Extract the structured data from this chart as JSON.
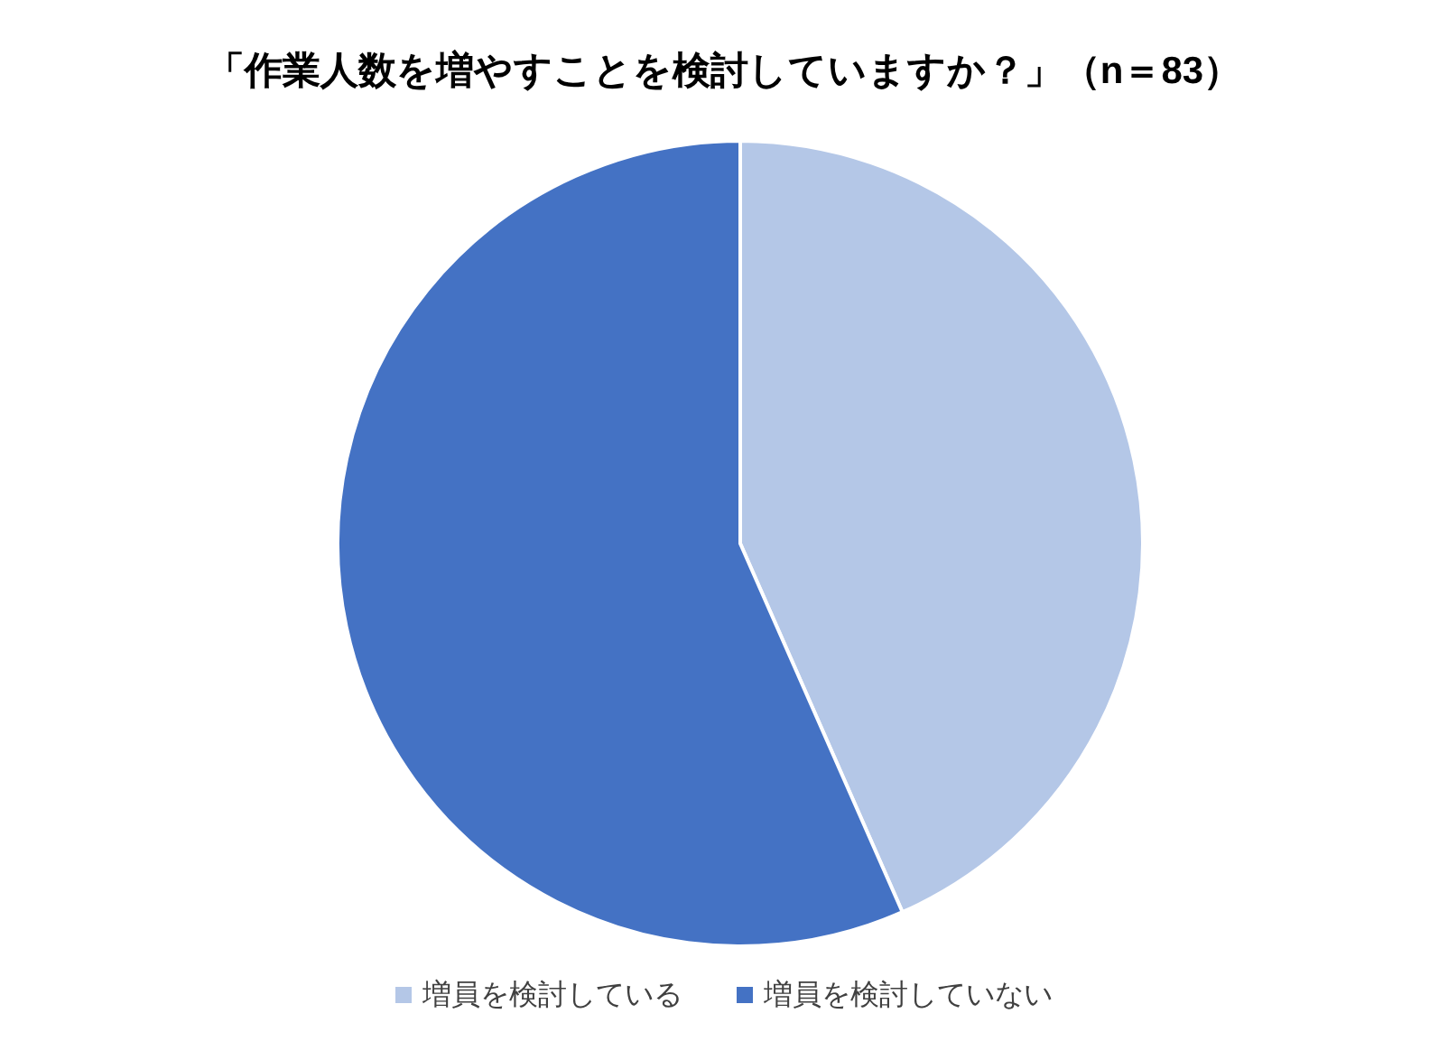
{
  "chart_data": {
    "type": "pie",
    "title": "「作業人数を増やすことを検討していますか？」（n＝83）",
    "categories": [
      "増員を検討している",
      "増員を検討していない"
    ],
    "values": [
      43.4,
      56.6
    ],
    "colors": [
      "#b4c7e7",
      "#4472c4"
    ],
    "legend": "bottom"
  }
}
